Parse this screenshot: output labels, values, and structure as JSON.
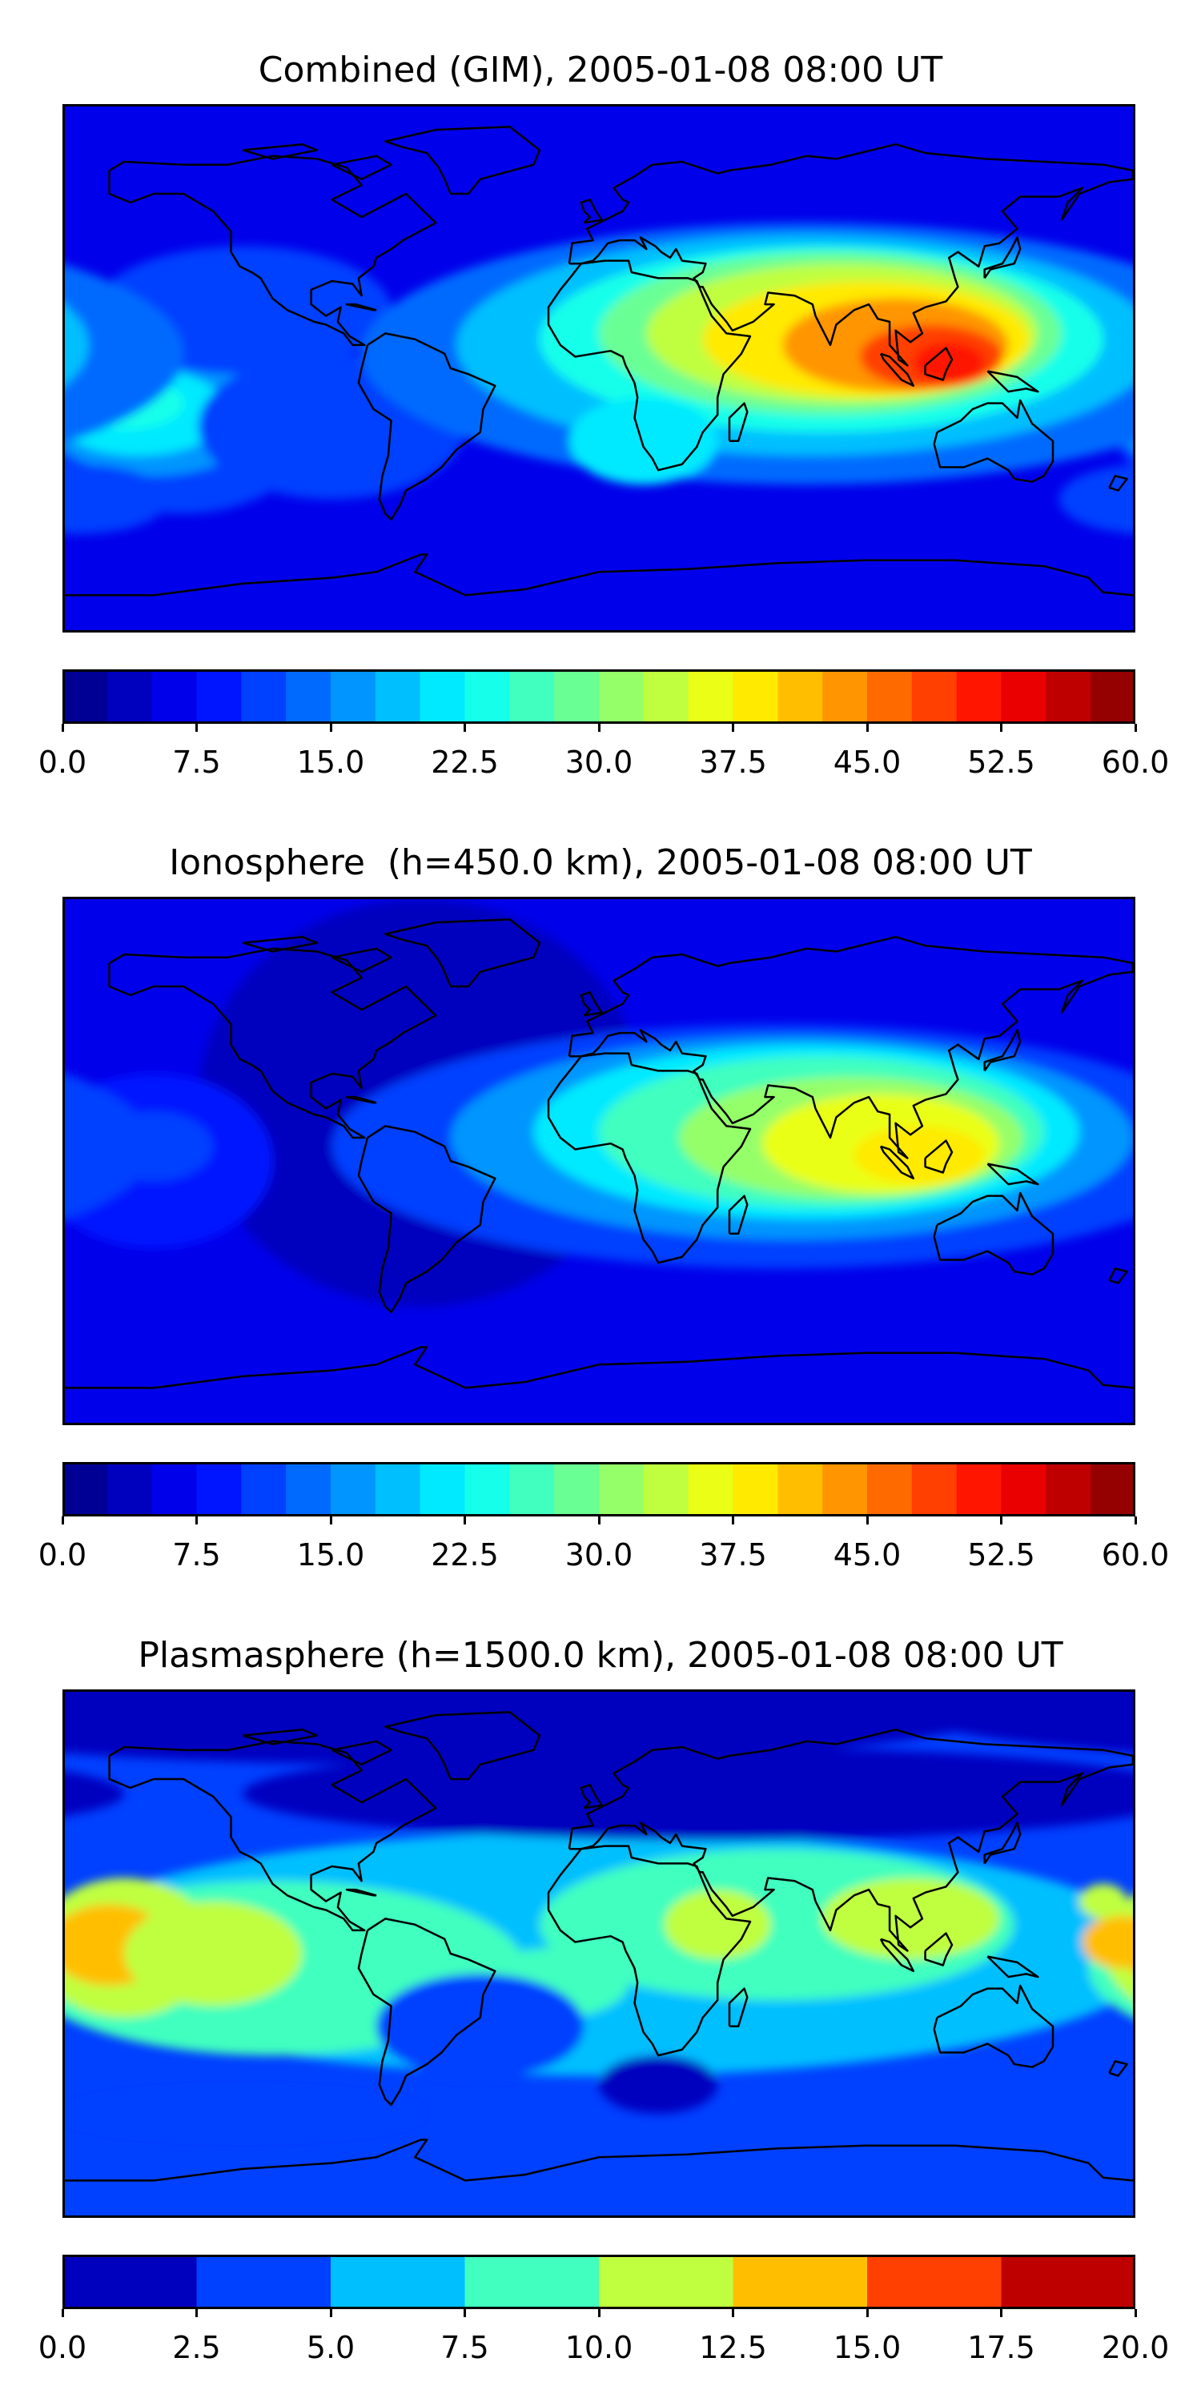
{
  "chart_data": [
    {
      "type": "heatmap",
      "title": "Combined (GIM), 2005-01-08 08:00 UT",
      "colormap": "jet",
      "colorbar": {
        "levels": [
          0.0,
          2.5,
          5.0,
          7.5,
          10.0,
          12.5,
          15.0,
          17.5,
          20.0,
          22.5,
          25.0,
          27.5,
          30.0,
          32.5,
          35.0,
          37.5,
          40.0,
          42.5,
          45.0,
          47.5,
          50.0,
          52.5,
          55.0,
          57.5,
          60.0
        ],
        "tick_labels": [
          "0.0",
          "7.5",
          "15.0",
          "22.5",
          "30.0",
          "37.5",
          "45.0",
          "52.5",
          "60.0"
        ],
        "ticks": [
          0.0,
          7.5,
          15.0,
          22.5,
          30.0,
          37.5,
          45.0,
          52.5,
          60.0
        ],
        "range": [
          0,
          60
        ]
      },
      "features": [
        {
          "lon": 115,
          "lat": 5,
          "value": 50
        },
        {
          "lon": 75,
          "lat": 12,
          "value": 45
        },
        {
          "lon": 40,
          "lat": 20,
          "value": 35
        },
        {
          "lon": -150,
          "lat": -15,
          "value": 22
        },
        {
          "lon": -70,
          "lat": 50,
          "value": 2
        }
      ]
    },
    {
      "type": "heatmap",
      "title": "Ionosphere  (h=450.0 km), 2005-01-08 08:00 UT",
      "colormap": "jet",
      "colorbar": {
        "levels": [
          0.0,
          2.5,
          5.0,
          7.5,
          10.0,
          12.5,
          15.0,
          17.5,
          20.0,
          22.5,
          25.0,
          27.5,
          30.0,
          32.5,
          35.0,
          37.5,
          40.0,
          42.5,
          45.0,
          47.5,
          50.0,
          52.5,
          55.0,
          57.5,
          60.0
        ],
        "tick_labels": [
          "0.0",
          "7.5",
          "15.0",
          "22.5",
          "30.0",
          "37.5",
          "45.0",
          "52.5",
          "60.0"
        ],
        "ticks": [
          0.0,
          7.5,
          15.0,
          22.5,
          30.0,
          37.5,
          45.0,
          52.5,
          60.0
        ],
        "range": [
          0,
          60
        ]
      },
      "features": [
        {
          "lon": 110,
          "lat": 0,
          "value": 38
        },
        {
          "lon": 50,
          "lat": 10,
          "value": 28
        },
        {
          "lon": -60,
          "lat": 20,
          "value": 3
        },
        {
          "lon": -150,
          "lat": 0,
          "value": 8
        }
      ]
    },
    {
      "type": "heatmap",
      "title": "Plasmasphere (h=1500.0 km), 2005-01-08 08:00 UT",
      "colormap": "jet",
      "colorbar": {
        "levels": [
          0.0,
          2.5,
          5.0,
          7.5,
          10.0,
          12.5,
          15.0,
          17.5,
          20.0
        ],
        "tick_labels": [
          "0.0",
          "2.5",
          "5.0",
          "7.5",
          "10.0",
          "12.5",
          "15.0",
          "17.5",
          "20.0"
        ],
        "ticks": [
          0.0,
          2.5,
          5.0,
          7.5,
          10.0,
          12.5,
          15.0,
          17.5,
          20.0
        ],
        "range": [
          0,
          20
        ]
      },
      "features": [
        {
          "lon": -175,
          "lat": 5,
          "value": 13
        },
        {
          "lon": 105,
          "lat": 15,
          "value": 11
        },
        {
          "lon": 42,
          "lat": 12,
          "value": 10
        },
        {
          "lon": 178,
          "lat": 5,
          "value": 13
        },
        {
          "lon": 20,
          "lat": -45,
          "value": 1
        }
      ]
    }
  ]
}
